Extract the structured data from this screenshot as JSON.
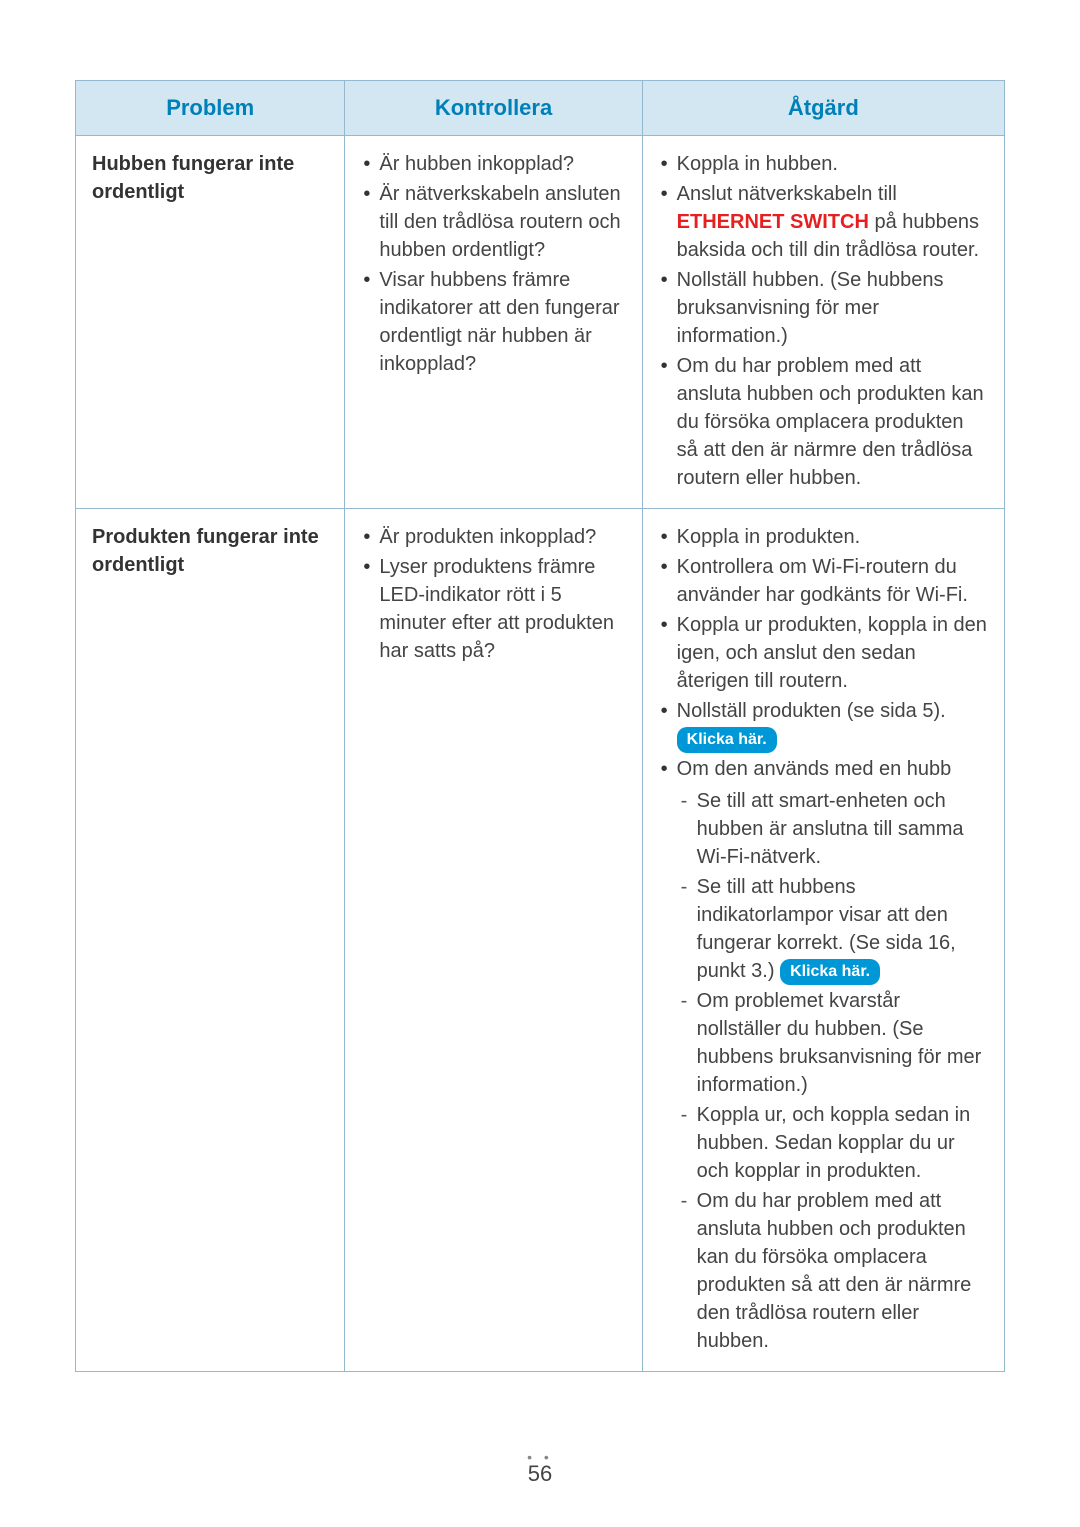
{
  "table": {
    "headers": {
      "problem": "Problem",
      "kontrollera": "Kontrollera",
      "atgard": "Åtgärd"
    },
    "rows": [
      {
        "problem": "Hubben fungerar inte ordentligt",
        "kontrollera": [
          "Är hubben inkopplad?",
          "Är nätverkskabeln ansluten till den trådlösa routern och hubben ordentligt?",
          "Visar hubbens främre indikatorer att den fungerar ordentligt när hubben är inkopplad?"
        ],
        "atgard1_pre": "Koppla in hubben.",
        "atgard1_line2a": "Anslut nätverkskabeln till ",
        "atgard1_eth": "ETHERNET SWITCH",
        "atgard1_line2b": " på hubbens baksida och till din trådlösa router.",
        "atgard1_line3": "Nollställ hubben. (Se hubbens bruksanvisning för mer information.)",
        "atgard1_line4": "Om du har problem med att ansluta hubben och produkten kan du försöka omplacera produkten så att den är närmre den trådlösa routern eller hubben."
      },
      {
        "problem": "Produkten fungerar inte ordentligt",
        "kontrollera": [
          "Är produkten inkopplad?",
          "Lyser produktens främre LED-indikator rött i 5 minuter efter att produkten har satts på?"
        ],
        "a1": "Koppla in produkten.",
        "a2": "Kontrollera om Wi-Fi-routern du använder har godkänts för Wi-Fi.",
        "a3": "Koppla ur produkten, koppla in den igen, och anslut den sedan återigen till routern.",
        "a4a": "Nollställ produkten (se sida 5).",
        "pill1": "Klicka här.",
        "a5": "Om den används med en hubb",
        "d1": "Se till att smart-enheten och hubben är anslutna till samma Wi-Fi-nätverk.",
        "d2a": "Se till att hubbens indikatorlampor visar att den fungerar korrekt. (Se sida 16, punkt 3.) ",
        "pill2": "Klicka här.",
        "d3": "Om problemet kvarstår nollställer du hubben. (Se hubbens bruksanvisning för mer information.)",
        "d4": "Koppla ur, och koppla sedan in hubben. Sedan kopplar du ur och kopplar in produkten.",
        "d5": "Om du har problem med att ansluta hubben och produkten kan du försöka omplacera produkten så att den är närmre den trådlösa routern eller hubben."
      }
    ]
  },
  "page_number": "56",
  "colors": {
    "header_bg": "#d2e7f2",
    "header_text": "#0080b8",
    "border": "#94b8d0",
    "red_link": "#e62020",
    "pill_bg": "#0097d6",
    "pill_text": "#ffffff"
  }
}
